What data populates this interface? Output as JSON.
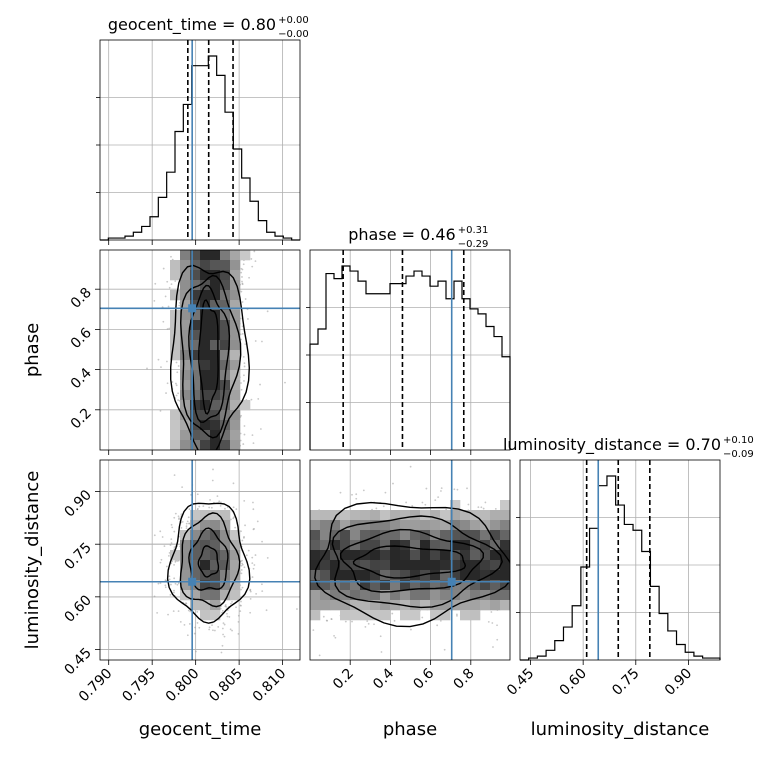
{
  "chart_data": {
    "type": "corner",
    "params": [
      {
        "key": "geocent_time",
        "label": "geocent_time",
        "range": [
          0.789,
          0.812
        ],
        "ticks": [
          0.79,
          0.795,
          0.8,
          0.805,
          0.81
        ],
        "tick_labels": [
          "0.790",
          "0.795",
          "0.800",
          "0.805",
          "0.810"
        ],
        "title_main": "geocent_time = 0.80",
        "title_sup": "+0.00",
        "title_sub": "−0.00",
        "median": 0.8015,
        "q_low": 0.7991,
        "q_high": 0.8043,
        "truth": 0.7996,
        "hist_edges": [
          0.789,
          0.812
        ],
        "hist_values": [
          0,
          1,
          1,
          2,
          4,
          7,
          12,
          22,
          35,
          56,
          70,
          90,
          90,
          95,
          85,
          66,
          47,
          32,
          20,
          10,
          4,
          2,
          1,
          0
        ]
      },
      {
        "key": "phase",
        "label": "phase",
        "range": [
          0.0,
          0.995
        ],
        "ticks": [
          0.2,
          0.4,
          0.6,
          0.8
        ],
        "tick_labels": [
          "0.2",
          "0.4",
          "0.6",
          "0.8"
        ],
        "title_main": "phase = 0.46",
        "title_sup": "+0.31",
        "title_sub": "−0.29",
        "median": 0.46,
        "q_low": 0.165,
        "q_high": 0.765,
        "truth": 0.705,
        "hist_values": [
          42,
          48,
          70,
          68,
          73,
          71,
          67,
          62,
          62,
          62,
          66,
          66,
          69,
          71,
          69,
          65,
          67,
          60,
          67,
          60,
          56,
          54,
          49,
          45,
          37
        ]
      },
      {
        "key": "luminosity_distance",
        "label": "luminosity_distance",
        "range": [
          0.42,
          0.99
        ],
        "ticks": [
          0.45,
          0.6,
          0.75,
          0.9
        ],
        "tick_labels": [
          "0.45",
          "0.60",
          "0.75",
          "0.90"
        ],
        "title_main": "luminosity_distance = 0.70",
        "title_sup": "+0.10",
        "title_sub": "−0.09",
        "median": 0.7,
        "q_low": 0.61,
        "q_high": 0.79,
        "truth": 0.643,
        "hist_values": [
          0,
          1,
          2,
          5,
          10,
          17,
          28,
          48,
          68,
          90,
          95,
          80,
          70,
          67,
          56,
          38,
          24,
          15,
          8,
          4,
          2,
          1,
          1
        ]
      }
    ],
    "contours": [
      {
        "pair": [
          0,
          1
        ],
        "levels": 4
      },
      {
        "pair": [
          0,
          2
        ],
        "levels": 4
      },
      {
        "pair": [
          1,
          2
        ],
        "levels": 4
      }
    ],
    "truth_color": "#4682b4",
    "line_color": "#000000",
    "grid": true
  }
}
